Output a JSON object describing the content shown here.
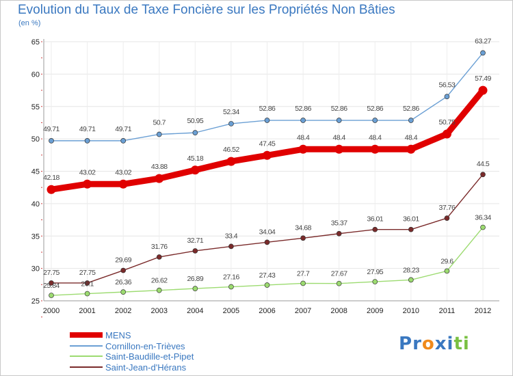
{
  "chart_data": {
    "type": "line",
    "title": "Evolution du Taux de Taxe Foncière sur les Propriétés Non Bâties",
    "ylabel": "(en %)",
    "x": [
      "2000",
      "2001",
      "2002",
      "2003",
      "2004",
      "2005",
      "2006",
      "2007",
      "2008",
      "2009",
      "2010",
      "2011",
      "2012"
    ],
    "ylim": [
      25,
      65
    ],
    "yticks": [
      25,
      30,
      35,
      40,
      45,
      50,
      55,
      60,
      65
    ],
    "grid": true,
    "legend": "bottom-left",
    "series": [
      {
        "name": "MENS",
        "color": "#e00000",
        "values": [
          42.18,
          43.02,
          43.02,
          43.88,
          45.18,
          46.52,
          47.45,
          48.4,
          48.4,
          48.4,
          48.4,
          50.75,
          57.49
        ],
        "labels": [
          "42.18",
          "43.02",
          "43.02",
          "43.88",
          "45.18",
          "46.52",
          "47.45",
          "48.4",
          "48.4",
          "48.4",
          "48.4",
          "50.75",
          "57.49"
        ]
      },
      {
        "name": "Cornillon-en-Trièves",
        "color": "#6a9fd4",
        "values": [
          49.71,
          49.71,
          49.71,
          50.7,
          50.95,
          52.34,
          52.86,
          52.86,
          52.86,
          52.86,
          52.86,
          56.53,
          63.27
        ],
        "labels": [
          "49.71",
          "49.71",
          "49.71",
          "50.7",
          "50.95",
          "52.34",
          "52.86",
          "52.86",
          "52.86",
          "52.86",
          "52.86",
          "56.53",
          "63.27"
        ]
      },
      {
        "name": "Saint-Baudille-et-Pipet",
        "color": "#9cdb70",
        "values": [
          25.84,
          26.1,
          26.36,
          26.62,
          26.89,
          27.16,
          27.43,
          27.7,
          27.67,
          27.95,
          28.23,
          29.6,
          36.34
        ],
        "labels": [
          "25.84",
          "26.1",
          "26.36",
          "26.62",
          "26.89",
          "27.16",
          "27.43",
          "27.7",
          "27.67",
          "27.95",
          "28.23",
          "29.6",
          "36.34"
        ]
      },
      {
        "name": "Saint-Jean-d'Hérans",
        "color": "#7a2a2a",
        "values": [
          27.75,
          27.75,
          29.69,
          31.76,
          32.71,
          33.4,
          34.04,
          34.68,
          35.37,
          36.01,
          36.01,
          37.76,
          44.5
        ],
        "labels": [
          "27.75",
          "27.75",
          "29.69",
          "31.76",
          "32.71",
          "33.4",
          "34.04",
          "34.68",
          "35.37",
          "36.01",
          "36.01",
          "37.76",
          "44.5"
        ]
      }
    ]
  },
  "logo": {
    "letters": [
      "P",
      "r",
      "o",
      "x",
      "i",
      "t",
      "i"
    ],
    "colors": [
      "#3a78c0",
      "#3a78c0",
      "#f08a1c",
      "#3a78c0",
      "#3a78c0",
      "#7ac043",
      "#7ac043"
    ]
  }
}
